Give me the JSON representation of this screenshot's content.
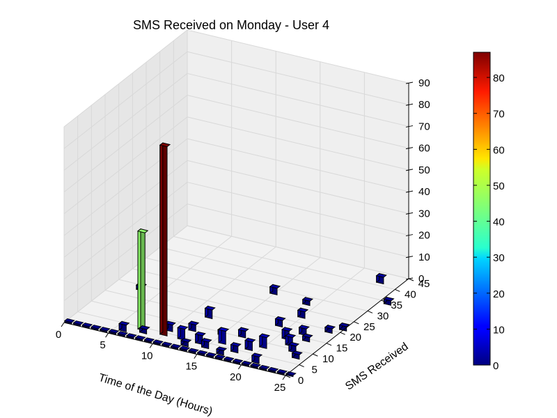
{
  "chart_data": {
    "type": "bar3d",
    "title": "SMS Received on Monday - User 4",
    "xlabel": "Time of the Day (Hours)",
    "ylabel": "SMS Received",
    "zlabel": "",
    "xlim": [
      0,
      25
    ],
    "ylim": [
      0,
      45
    ],
    "zlim": [
      0,
      90
    ],
    "x_ticks": [
      "0",
      "5",
      "10",
      "15",
      "20",
      "25"
    ],
    "y_ticks": [
      "0",
      "5",
      "10",
      "15",
      "20",
      "25",
      "30",
      "35",
      "40",
      "45"
    ],
    "z_ticks": [
      "0",
      "10",
      "20",
      "30",
      "40",
      "50",
      "60",
      "70",
      "80",
      "90"
    ],
    "colorbar": {
      "colormap": "jet",
      "min": 0,
      "max": 87,
      "ticks": [
        "0",
        "10",
        "20",
        "30",
        "40",
        "50",
        "60",
        "70",
        "80"
      ]
    },
    "bars": [
      {
        "x": 7.5,
        "y": 4,
        "z": 45
      },
      {
        "x": 10.0,
        "y": 4,
        "z": 87
      },
      {
        "x": 3.0,
        "y": 18,
        "z": 2
      },
      {
        "x": 6.0,
        "y": 2,
        "z": 3
      },
      {
        "x": 8.0,
        "y": 3,
        "z": 2
      },
      {
        "x": 10.0,
        "y": 6,
        "z": 3
      },
      {
        "x": 12.0,
        "y": 4,
        "z": 5
      },
      {
        "x": 12.0,
        "y": 14,
        "z": 4
      },
      {
        "x": 12.0,
        "y": 8,
        "z": 3
      },
      {
        "x": 13.0,
        "y": 2,
        "z": 2
      },
      {
        "x": 14.0,
        "y": 4,
        "z": 4
      },
      {
        "x": 15.0,
        "y": 3,
        "z": 3
      },
      {
        "x": 15.0,
        "y": 9,
        "z": 2
      },
      {
        "x": 15.0,
        "y": 28,
        "z": 3
      },
      {
        "x": 16.0,
        "y": 6,
        "z": 6
      },
      {
        "x": 17.0,
        "y": 2,
        "z": 2
      },
      {
        "x": 17.0,
        "y": 10,
        "z": 3
      },
      {
        "x": 18.0,
        "y": 4,
        "z": 3
      },
      {
        "x": 19.0,
        "y": 6,
        "z": 4
      },
      {
        "x": 19.0,
        "y": 17,
        "z": 3
      },
      {
        "x": 19.0,
        "y": 27,
        "z": 2
      },
      {
        "x": 20.0,
        "y": 8,
        "z": 5
      },
      {
        "x": 20.0,
        "y": 22,
        "z": 3
      },
      {
        "x": 21.0,
        "y": 2,
        "z": 3
      },
      {
        "x": 21.0,
        "y": 13,
        "z": 4
      },
      {
        "x": 22.0,
        "y": 11,
        "z": 4
      },
      {
        "x": 22.0,
        "y": 16,
        "z": 3
      },
      {
        "x": 23.0,
        "y": 9,
        "z": 3
      },
      {
        "x": 23.0,
        "y": 14,
        "z": 2
      },
      {
        "x": 23.0,
        "y": 41,
        "z": 3
      },
      {
        "x": 24.0,
        "y": 7,
        "z": 2
      },
      {
        "x": 24.0,
        "y": 19,
        "z": 2
      },
      {
        "x": 25.0,
        "y": 21,
        "z": 2
      },
      {
        "x": 26.0,
        "y": 34,
        "z": 2
      }
    ]
  }
}
